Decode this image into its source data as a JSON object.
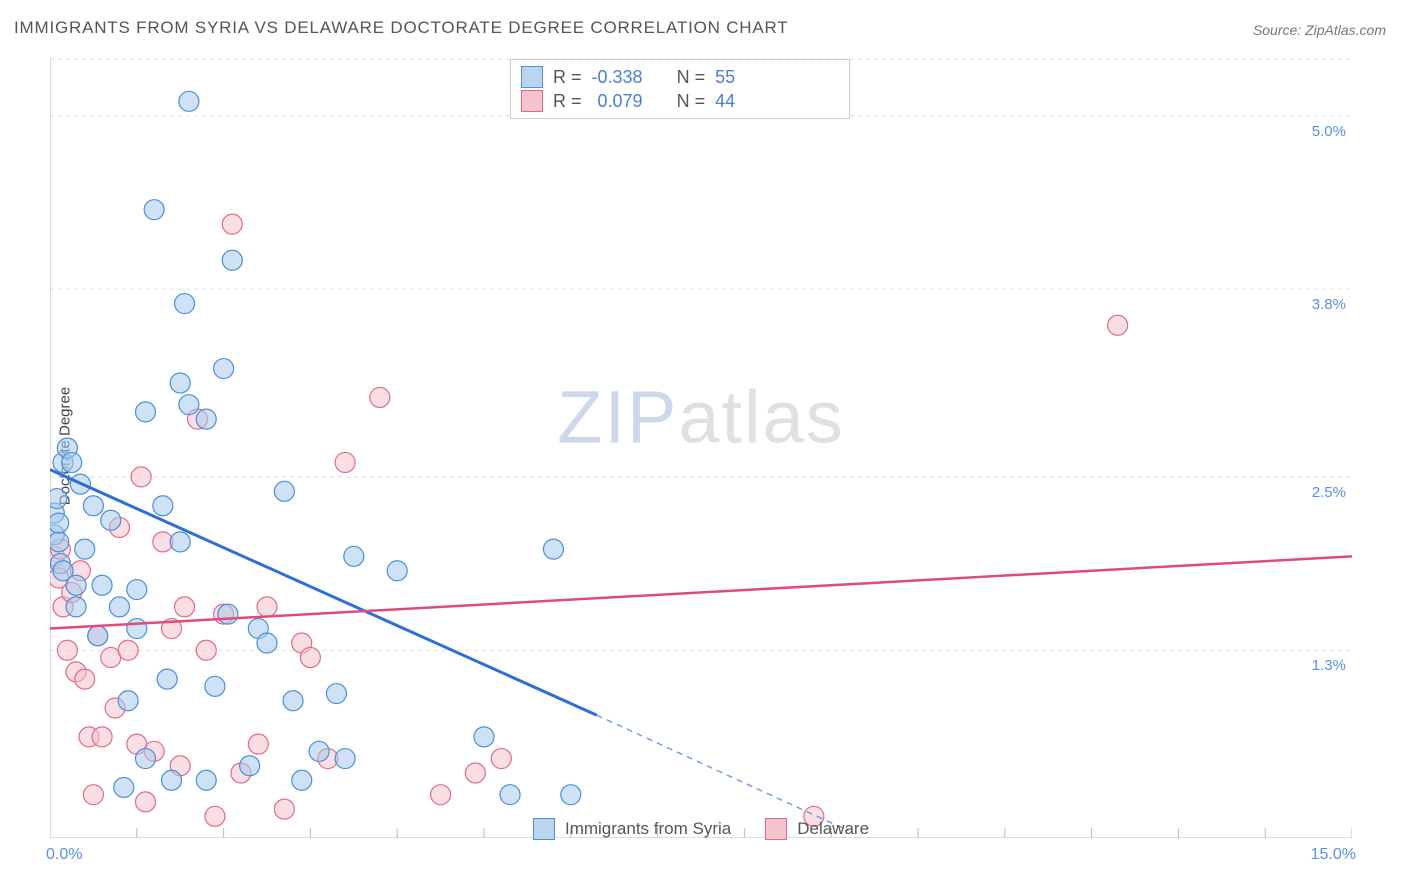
{
  "title": "IMMIGRANTS FROM SYRIA VS DELAWARE DOCTORATE DEGREE CORRELATION CHART",
  "source": "Source: ZipAtlas.com",
  "y_axis_title": "Doctorate Degree",
  "watermark": {
    "pre": "ZIP",
    "post": "atlas"
  },
  "chart": {
    "type": "scatter",
    "x_axis": {
      "min": 0.0,
      "max": 15.0,
      "label_min": "0.0%",
      "label_max": "15.0%",
      "ticks": [
        0,
        1,
        2,
        3,
        4,
        5,
        6,
        7,
        8,
        9,
        10,
        11,
        12,
        13,
        14,
        15
      ]
    },
    "y_axis": {
      "min": 0.0,
      "max": 5.4,
      "grid_values": [
        1.3,
        2.5,
        3.8,
        5.0
      ],
      "grid_labels": [
        "1.3%",
        "2.5%",
        "3.8%",
        "5.0%"
      ]
    },
    "background_color": "#ffffff",
    "grid_color": "#dcdcdc",
    "point_radius": 10,
    "series": [
      {
        "name": "Immigrants from Syria",
        "color_fill": "#a8caed",
        "color_stroke": "#4a8fd8",
        "R": "-0.338",
        "N": "55",
        "trend": {
          "x1": 0.0,
          "y1": 2.55,
          "x2": 6.3,
          "y2": 0.85,
          "extend_x2": 9.2,
          "extend_y2": 0.05,
          "color": "#2d6fd6"
        },
        "points": [
          [
            0.05,
            2.25
          ],
          [
            0.05,
            2.1
          ],
          [
            0.08,
            2.35
          ],
          [
            0.1,
            2.05
          ],
          [
            0.1,
            2.18
          ],
          [
            0.12,
            1.9
          ],
          [
            0.15,
            2.6
          ],
          [
            0.15,
            1.85
          ],
          [
            0.2,
            2.7
          ],
          [
            0.25,
            2.6
          ],
          [
            0.3,
            1.6
          ],
          [
            0.3,
            1.75
          ],
          [
            0.35,
            2.45
          ],
          [
            0.4,
            2.0
          ],
          [
            0.5,
            2.3
          ],
          [
            0.55,
            1.4
          ],
          [
            0.6,
            1.75
          ],
          [
            0.7,
            2.2
          ],
          [
            0.8,
            1.6
          ],
          [
            0.85,
            0.35
          ],
          [
            0.9,
            0.95
          ],
          [
            1.0,
            1.45
          ],
          [
            1.0,
            1.72
          ],
          [
            1.1,
            0.55
          ],
          [
            1.1,
            2.95
          ],
          [
            1.2,
            4.35
          ],
          [
            1.3,
            2.3
          ],
          [
            1.35,
            1.1
          ],
          [
            1.4,
            0.4
          ],
          [
            1.5,
            2.05
          ],
          [
            1.5,
            3.15
          ],
          [
            1.55,
            3.7
          ],
          [
            1.6,
            3.0
          ],
          [
            1.6,
            5.1
          ],
          [
            1.8,
            2.9
          ],
          [
            1.8,
            0.4
          ],
          [
            1.9,
            1.05
          ],
          [
            2.0,
            3.25
          ],
          [
            2.05,
            1.55
          ],
          [
            2.1,
            4.0
          ],
          [
            2.3,
            0.5
          ],
          [
            2.4,
            1.45
          ],
          [
            2.5,
            1.35
          ],
          [
            2.7,
            2.4
          ],
          [
            2.8,
            0.95
          ],
          [
            2.9,
            0.4
          ],
          [
            3.1,
            0.6
          ],
          [
            3.3,
            1.0
          ],
          [
            3.4,
            0.55
          ],
          [
            3.5,
            1.95
          ],
          [
            4.0,
            1.85
          ],
          [
            5.0,
            0.7
          ],
          [
            5.3,
            0.3
          ],
          [
            5.8,
            2.0
          ],
          [
            6.0,
            0.3
          ]
        ]
      },
      {
        "name": "Delaware",
        "color_fill": "#f4c3cd",
        "color_stroke": "#e16a8a",
        "R": "0.079",
        "N": "44",
        "trend": {
          "x1": 0.0,
          "y1": 1.45,
          "x2": 15.0,
          "y2": 1.95,
          "color": "#e14b7a"
        },
        "points": [
          [
            0.05,
            1.95
          ],
          [
            0.1,
            1.8
          ],
          [
            0.12,
            2.0
          ],
          [
            0.15,
            1.6
          ],
          [
            0.2,
            1.3
          ],
          [
            0.25,
            1.7
          ],
          [
            0.3,
            1.15
          ],
          [
            0.35,
            1.85
          ],
          [
            0.4,
            1.1
          ],
          [
            0.45,
            0.7
          ],
          [
            0.5,
            0.3
          ],
          [
            0.55,
            1.4
          ],
          [
            0.6,
            0.7
          ],
          [
            0.7,
            1.25
          ],
          [
            0.75,
            0.9
          ],
          [
            0.8,
            2.15
          ],
          [
            0.9,
            1.3
          ],
          [
            1.0,
            0.65
          ],
          [
            1.05,
            2.5
          ],
          [
            1.1,
            0.25
          ],
          [
            1.2,
            0.6
          ],
          [
            1.3,
            2.05
          ],
          [
            1.4,
            1.45
          ],
          [
            1.5,
            0.5
          ],
          [
            1.55,
            1.6
          ],
          [
            1.7,
            2.9
          ],
          [
            1.8,
            1.3
          ],
          [
            1.9,
            0.15
          ],
          [
            2.0,
            1.55
          ],
          [
            2.1,
            4.25
          ],
          [
            2.2,
            0.45
          ],
          [
            2.4,
            0.65
          ],
          [
            2.5,
            1.6
          ],
          [
            2.7,
            0.2
          ],
          [
            2.9,
            1.35
          ],
          [
            3.0,
            1.25
          ],
          [
            3.2,
            0.55
          ],
          [
            3.4,
            2.6
          ],
          [
            3.8,
            3.05
          ],
          [
            4.5,
            0.3
          ],
          [
            4.9,
            0.45
          ],
          [
            5.2,
            0.55
          ],
          [
            8.8,
            0.15
          ],
          [
            12.3,
            3.55
          ]
        ]
      }
    ]
  },
  "legend_top_labels": {
    "r": "R =",
    "n": "N ="
  },
  "legend_bottom": [
    "Immigrants from Syria",
    "Delaware"
  ]
}
